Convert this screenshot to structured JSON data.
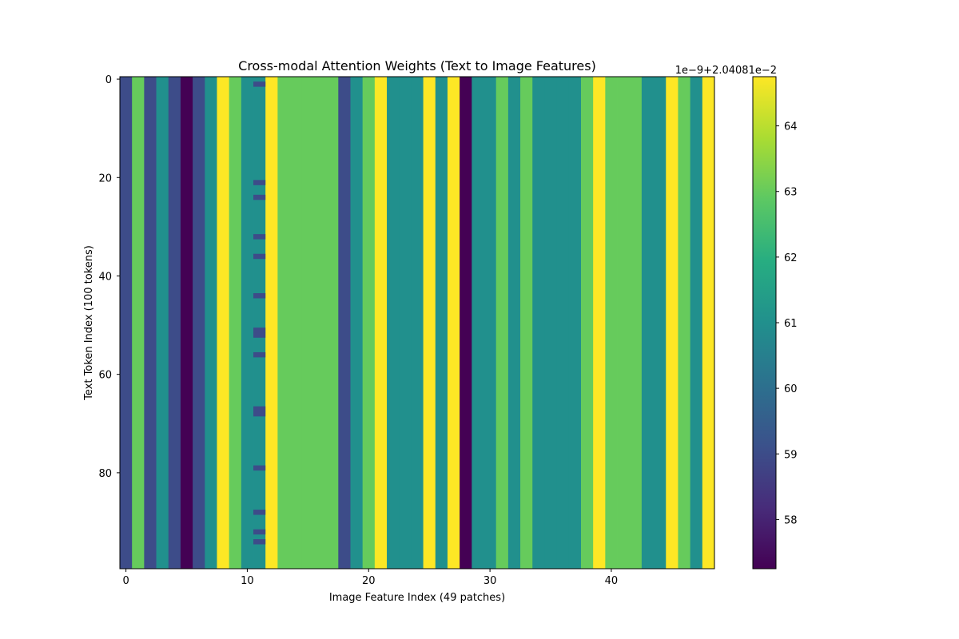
{
  "chart_data": {
    "type": "heatmap",
    "title": "Cross-modal Attention Weights (Text to Image Features)",
    "xlabel": "Image Feature Index (49 patches)",
    "ylabel": "Text Token Index (100 tokens)",
    "colormap": "viridis",
    "n_columns": 49,
    "n_rows": 100,
    "xlim": [
      -0.5,
      48.5
    ],
    "ylim": [
      99.5,
      -0.5
    ],
    "x_ticks": [
      0,
      10,
      20,
      30,
      40
    ],
    "y_ticks": [
      0,
      20,
      40,
      60,
      80
    ],
    "column_values": [
      59,
      63,
      59,
      61,
      59,
      57,
      59,
      61,
      65,
      63,
      61,
      61,
      65,
      63,
      63,
      63,
      63,
      63,
      59,
      61,
      63,
      65,
      61,
      61,
      61,
      65,
      61,
      65,
      57,
      61,
      61,
      63,
      61,
      63,
      61,
      61,
      61,
      61,
      63,
      65,
      63,
      63,
      63,
      61,
      61,
      65,
      63,
      61,
      65
    ],
    "overrides": [
      {
        "col": 11,
        "rows": [
          1,
          21,
          24,
          32,
          36,
          44,
          51,
          52,
          56,
          67,
          68,
          79,
          88,
          92,
          94
        ],
        "value": 59
      }
    ],
    "colorbar": {
      "vmin": 57.25,
      "vmax": 64.75,
      "ticks": [
        58,
        59,
        60,
        61,
        62,
        63,
        64
      ],
      "offset_label": "1e−9+2.04081e−2"
    }
  }
}
